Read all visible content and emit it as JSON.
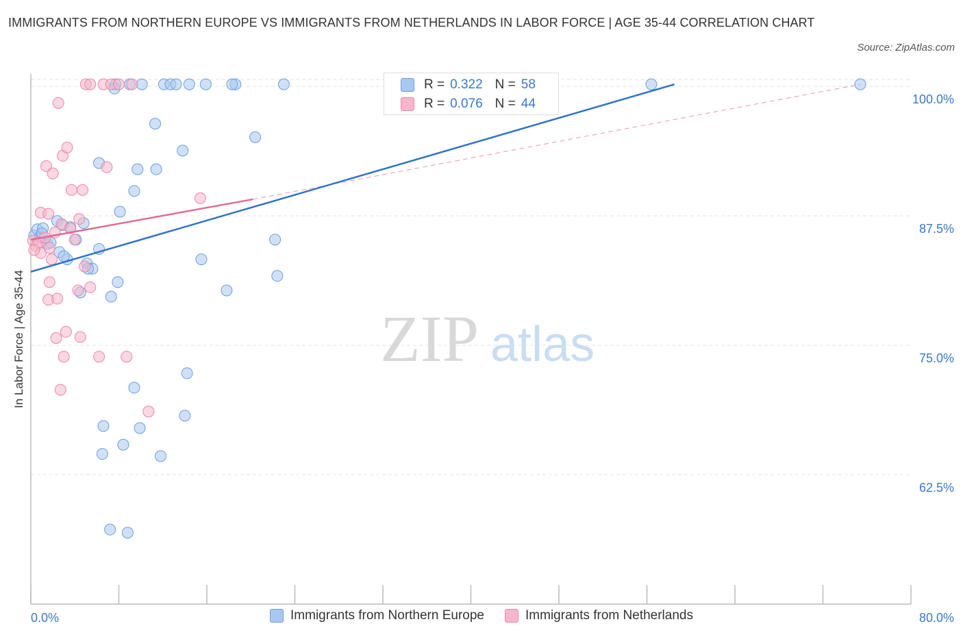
{
  "header": {
    "title": "IMMIGRANTS FROM NORTHERN EUROPE VS IMMIGRANTS FROM NETHERLANDS IN LABOR FORCE | AGE 35-44 CORRELATION CHART",
    "source": "Source: ZipAtlas.com"
  },
  "watermark": {
    "zip": "ZIP",
    "atlas": "atlas"
  },
  "colors": {
    "blue_fill": "#a9c8f1",
    "blue_stroke": "#6a9ee0",
    "blue_line": "#2f73c9",
    "pink_fill": "#f6b7cb",
    "pink_stroke": "#e888a7",
    "pink_line": "#e06b94",
    "tick_text": "#3b78c9",
    "grid": "#e3e3e3"
  },
  "stats": [
    {
      "r_label": "R =",
      "r_value": "0.322",
      "n_label": "N =",
      "n_value": "58"
    },
    {
      "r_label": "R =",
      "r_value": "0.076",
      "n_label": "N =",
      "n_value": "44"
    }
  ],
  "legend": {
    "items": [
      "Immigrants from Northern Europe",
      "Immigrants from Netherlands"
    ]
  },
  "chart_data": {
    "type": "scatter",
    "title": "IMMIGRANTS FROM NORTHERN EUROPE VS IMMIGRANTS FROM NETHERLANDS IN LABOR FORCE | AGE 35-44 CORRELATION CHART",
    "xlabel": "",
    "ylabel": "In Labor Force | Age 35-44",
    "xlim": [
      0,
      80
    ],
    "ylim": [
      50,
      101.2
    ],
    "x_tick_labels": [
      "0.0%",
      "80.0%"
    ],
    "y_ticks": [
      62.5,
      75.0,
      87.5,
      100.0
    ],
    "y_tick_labels": [
      "62.5%",
      "75.0%",
      "87.5%",
      "100.0%"
    ],
    "grid": true,
    "legend_position": "bottom",
    "series": [
      {
        "name": "Immigrants from Northern Europe",
        "points": [
          [
            0.3,
            85.6
          ],
          [
            0.6,
            86.2
          ],
          [
            0.8,
            85.4
          ],
          [
            1.1,
            86.3
          ],
          [
            1.0,
            85.8
          ],
          [
            1.5,
            84.8
          ],
          [
            1.8,
            84.9
          ],
          [
            2.4,
            87.0
          ],
          [
            2.9,
            86.6
          ],
          [
            3.6,
            86.4
          ],
          [
            4.1,
            85.2
          ],
          [
            4.8,
            86.8
          ],
          [
            2.6,
            84.0
          ],
          [
            3.3,
            83.3
          ],
          [
            3.0,
            83.6
          ],
          [
            5.1,
            82.9
          ],
          [
            5.6,
            82.4
          ],
          [
            6.2,
            92.6
          ],
          [
            6.2,
            84.3
          ],
          [
            7.7,
            100.2
          ],
          [
            7.6,
            99.8
          ],
          [
            8.1,
            87.9
          ],
          [
            9.0,
            100.2
          ],
          [
            9.4,
            89.9
          ],
          [
            9.7,
            92.0
          ],
          [
            10.1,
            100.2
          ],
          [
            11.3,
            96.4
          ],
          [
            11.4,
            92.0
          ],
          [
            12.1,
            100.2
          ],
          [
            12.7,
            100.2
          ],
          [
            13.2,
            100.2
          ],
          [
            13.8,
            93.8
          ],
          [
            14.4,
            100.2
          ],
          [
            15.9,
            100.2
          ],
          [
            18.6,
            100.2
          ],
          [
            18.3,
            100.2
          ],
          [
            20.4,
            95.1
          ],
          [
            23.0,
            100.2
          ],
          [
            22.2,
            85.2
          ],
          [
            22.4,
            81.7
          ],
          [
            15.5,
            83.3
          ],
          [
            17.8,
            80.3
          ],
          [
            7.9,
            81.1
          ],
          [
            7.3,
            79.7
          ],
          [
            4.5,
            80.1
          ],
          [
            5.2,
            82.4
          ],
          [
            9.4,
            70.9
          ],
          [
            14.2,
            72.3
          ],
          [
            6.6,
            67.2
          ],
          [
            9.9,
            67.0
          ],
          [
            14.0,
            68.2
          ],
          [
            11.8,
            64.3
          ],
          [
            8.4,
            65.4
          ],
          [
            6.5,
            64.5
          ],
          [
            7.2,
            57.2
          ],
          [
            8.8,
            56.9
          ],
          [
            56.4,
            100.2
          ],
          [
            75.4,
            100.2
          ]
        ],
        "trend": {
          "x": [
            0,
            58.5
          ],
          "y": [
            82.1,
            100.2
          ],
          "style": "solid"
        }
      },
      {
        "name": "Immigrants from Netherlands",
        "points": [
          [
            0.2,
            85.1
          ],
          [
            0.5,
            84.6
          ],
          [
            0.7,
            84.9
          ],
          [
            0.9,
            83.9
          ],
          [
            0.3,
            84.2
          ],
          [
            1.3,
            85.4
          ],
          [
            1.7,
            84.4
          ],
          [
            2.2,
            85.9
          ],
          [
            2.8,
            86.7
          ],
          [
            3.6,
            86.3
          ],
          [
            4.0,
            85.2
          ],
          [
            4.4,
            87.2
          ],
          [
            0.9,
            87.8
          ],
          [
            1.6,
            87.7
          ],
          [
            1.7,
            81.1
          ],
          [
            1.6,
            79.4
          ],
          [
            1.9,
            83.3
          ],
          [
            2.4,
            79.5
          ],
          [
            2.3,
            75.7
          ],
          [
            3.2,
            76.3
          ],
          [
            3.0,
            73.9
          ],
          [
            4.3,
            80.3
          ],
          [
            4.5,
            75.8
          ],
          [
            4.9,
            82.6
          ],
          [
            5.4,
            80.6
          ],
          [
            6.2,
            73.9
          ],
          [
            8.7,
            73.9
          ],
          [
            2.7,
            70.7
          ],
          [
            10.7,
            68.6
          ],
          [
            2.5,
            98.4
          ],
          [
            1.4,
            92.3
          ],
          [
            2.0,
            91.6
          ],
          [
            2.9,
            93.3
          ],
          [
            3.3,
            94.1
          ],
          [
            3.7,
            90.0
          ],
          [
            4.7,
            90.0
          ],
          [
            5.0,
            100.2
          ],
          [
            5.4,
            100.2
          ],
          [
            6.6,
            100.2
          ],
          [
            7.3,
            100.2
          ],
          [
            9.2,
            100.2
          ],
          [
            8.0,
            100.2
          ],
          [
            6.9,
            92.2
          ],
          [
            15.4,
            89.2
          ]
        ],
        "trend": {
          "x": [
            0,
            20.2
          ],
          "y": [
            85.2,
            89.1
          ],
          "style": "solid"
        },
        "trend_extension": {
          "x": [
            20.2,
            75.4
          ],
          "y": [
            89.1,
            100.2
          ],
          "style": "dashed"
        }
      }
    ]
  }
}
